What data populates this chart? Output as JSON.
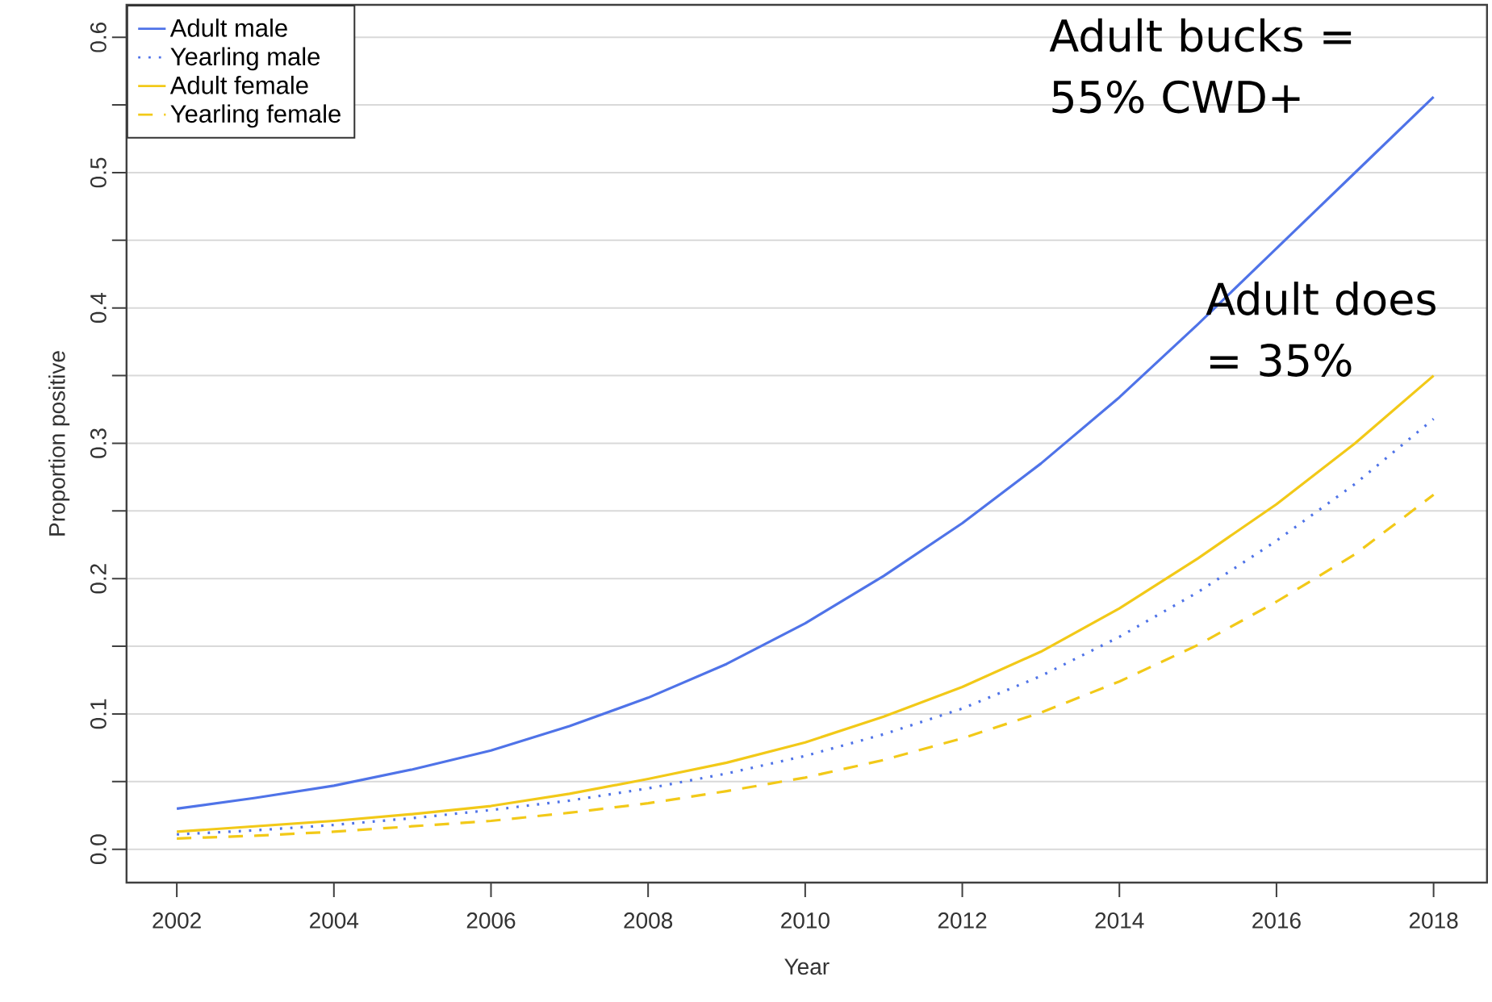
{
  "chart_data": {
    "type": "line",
    "xlabel": "Year",
    "ylabel": "Proportion positive",
    "x": [
      2002,
      2003,
      2004,
      2005,
      2006,
      2007,
      2008,
      2009,
      2010,
      2011,
      2012,
      2013,
      2014,
      2015,
      2016,
      2017,
      2018
    ],
    "series": [
      {
        "name": "Adult male",
        "color": "#4f73e8",
        "line_style": "solid",
        "values": [
          0.03,
          0.038,
          0.047,
          0.059,
          0.073,
          0.091,
          0.112,
          0.137,
          0.167,
          0.202,
          0.241,
          0.285,
          0.334,
          0.388,
          0.444,
          0.5,
          0.556
        ]
      },
      {
        "name": "Yearling male",
        "color": "#4f73e8",
        "line_style": "dotted",
        "values": [
          0.011,
          0.014,
          0.018,
          0.023,
          0.029,
          0.036,
          0.045,
          0.056,
          0.069,
          0.085,
          0.104,
          0.128,
          0.157,
          0.19,
          0.228,
          0.27,
          0.318
        ]
      },
      {
        "name": "Adult female",
        "color": "#f2c918",
        "line_style": "solid",
        "values": [
          0.013,
          0.017,
          0.021,
          0.026,
          0.032,
          0.041,
          0.052,
          0.064,
          0.079,
          0.098,
          0.12,
          0.146,
          0.178,
          0.215,
          0.255,
          0.3,
          0.35
        ]
      },
      {
        "name": "Yearling female",
        "color": "#f2c918",
        "line_style": "dashed",
        "values": [
          0.008,
          0.01,
          0.013,
          0.017,
          0.021,
          0.027,
          0.034,
          0.043,
          0.053,
          0.066,
          0.082,
          0.101,
          0.124,
          0.151,
          0.183,
          0.218,
          0.262
        ]
      }
    ],
    "xlim": [
      2001.36,
      2018.68
    ],
    "ylim": [
      -0.0246,
      0.624
    ],
    "xticks": [
      2002,
      2004,
      2006,
      2008,
      2010,
      2012,
      2014,
      2016,
      2018
    ],
    "yticks": [
      {
        "value": 0.0,
        "label": "0.0"
      },
      {
        "value": 0.05,
        "label": null
      },
      {
        "value": 0.1,
        "label": "0.1"
      },
      {
        "value": 0.15,
        "label": null
      },
      {
        "value": 0.2,
        "label": "0.2"
      },
      {
        "value": 0.25,
        "label": null
      },
      {
        "value": 0.3,
        "label": "0.3"
      },
      {
        "value": 0.35,
        "label": null
      },
      {
        "value": 0.4,
        "label": "0.4"
      },
      {
        "value": 0.45,
        "label": null
      },
      {
        "value": 0.5,
        "label": "0.5"
      },
      {
        "value": 0.55,
        "label": null
      },
      {
        "value": 0.6,
        "label": "0.6"
      }
    ],
    "grid": "y",
    "legend": "top left",
    "marker": "none",
    "annotations": [
      "Adult bucks = 55% CWD+",
      "Adult does = 35%"
    ]
  }
}
